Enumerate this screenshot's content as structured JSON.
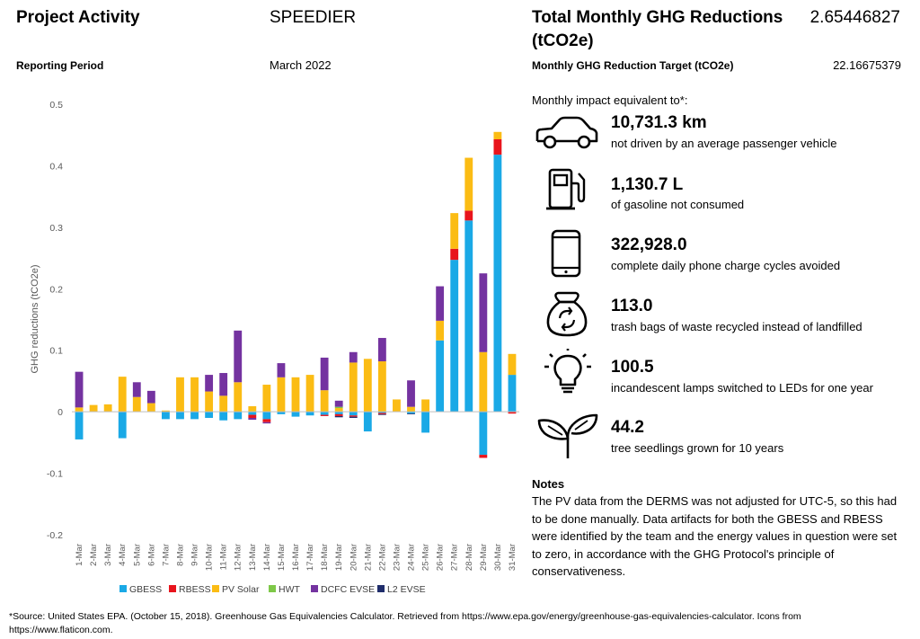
{
  "header": {
    "project_activity_label": "Project Activity",
    "project_name": "SPEEDIER",
    "reporting_period_label": "Reporting Period",
    "reporting_period_value": "March 2022",
    "total_label": "Total Monthly GHG Reductions (tCO2e)",
    "total_value": "2.65446827",
    "target_label": "Monthly GHG Reduction Target (tCO2e)",
    "target_value": "22.16675379"
  },
  "impacts": {
    "intro": "Monthly impact equivalent to*:",
    "items": [
      {
        "icon": "car-icon",
        "value": "10,731.3 km",
        "desc": "not driven by an average passenger vehicle"
      },
      {
        "icon": "fuel-pump-icon",
        "value": "1,130.7 L",
        "desc": "of gasoline not consumed"
      },
      {
        "icon": "phone-icon",
        "value": "322,928.0",
        "desc": "complete daily phone charge cycles avoided"
      },
      {
        "icon": "recycle-bag-icon",
        "value": "113.0",
        "desc": "trash bags of waste recycled instead of landfilled"
      },
      {
        "icon": "lightbulb-icon",
        "value": "100.5",
        "desc": "incandescent lamps switched to LEDs for one year"
      },
      {
        "icon": "seedling-icon",
        "value": "44.2",
        "desc": "tree seedlings grown for 10 years"
      }
    ]
  },
  "notes": {
    "heading": "Notes",
    "text": "The PV data from the DERMS was not adjusted for UTC-5, so this had to be done manually. Data artifacts for both the GBESS and RBESS were identified by the team and the energy values in question were set to zero, in accordance with the GHG Protocol's principle of conservativeness."
  },
  "source": "*Source: United States EPA. (October 15, 2018). Greenhouse Gas Equivalencies Calculator. Retrieved from https://www.epa.gov/energy/greenhouse-gas-equivalencies-calculator. Icons from https://www.flaticon.com.",
  "chart_data": {
    "type": "bar",
    "stacked": true,
    "ylabel": "GHG reductions (tCO2e)",
    "ylim": [
      -0.2,
      0.5
    ],
    "yticks": [
      -0.2,
      -0.1,
      0,
      0.1,
      0.2,
      0.3,
      0.4,
      0.5
    ],
    "ytick_labels": [
      "-0.2",
      "-0.1",
      "0",
      "0.1",
      "0.2",
      "0.3",
      "0.4",
      "0.5"
    ],
    "grid": false,
    "legend_position": "bottom",
    "categories": [
      "1-Mar",
      "2-Mar",
      "3-Mar",
      "4-Mar",
      "5-Mar",
      "6-Mar",
      "7-Mar",
      "8-Mar",
      "9-Mar",
      "10-Mar",
      "11-Mar",
      "12-Mar",
      "13-Mar",
      "14-Mar",
      "15-Mar",
      "16-Mar",
      "17-Mar",
      "18-Mar",
      "19-Mar",
      "20-Mar",
      "21-Mar",
      "22-Mar",
      "23-Mar",
      "24-Mar",
      "25-Mar",
      "26-Mar",
      "27-Mar",
      "28-Mar",
      "29-Mar",
      "30-Mar",
      "31-Mar"
    ],
    "series": [
      {
        "name": "GBESS",
        "color": "#1aa9e6",
        "values": [
          -0.045,
          0,
          0,
          -0.043,
          0,
          0,
          -0.012,
          -0.012,
          -0.012,
          -0.01,
          -0.014,
          -0.012,
          -0.005,
          -0.012,
          -0.004,
          -0.008,
          -0.006,
          -0.005,
          -0.004,
          -0.006,
          -0.032,
          -0.002,
          0,
          -0.003,
          -0.034,
          0.116,
          0.247,
          0.311,
          -0.07,
          0.418,
          0.06
        ]
      },
      {
        "name": "RBESS",
        "color": "#e8141c",
        "values": [
          0,
          0,
          0,
          0,
          0,
          0,
          0,
          0,
          0,
          0,
          0,
          0,
          -0.005,
          -0.005,
          0,
          0,
          0,
          -0.002,
          -0.003,
          -0.002,
          0,
          -0.002,
          0,
          0,
          0,
          0,
          0.018,
          0.016,
          -0.005,
          0.025,
          -0.003
        ]
      },
      {
        "name": "PV Solar",
        "color": "#fbbc14",
        "values": [
          0.007,
          0.011,
          0.012,
          0.057,
          0.024,
          0.014,
          0.002,
          0.056,
          0.056,
          0.033,
          0.026,
          0.048,
          0.009,
          0.044,
          0.056,
          0.056,
          0.06,
          0.035,
          0.006,
          0.08,
          0.086,
          0.082,
          0.02,
          0.008,
          0.02,
          0.032,
          0.058,
          0.086,
          0.097,
          0.012,
          0.034
        ]
      },
      {
        "name": "HWT",
        "color": "#7ec848",
        "values": [
          0,
          0,
          0,
          0,
          0,
          0,
          0,
          0,
          0,
          0,
          0,
          0,
          0,
          0,
          0,
          0,
          0,
          0,
          0.002,
          0,
          0,
          0,
          0,
          0,
          0,
          0,
          0,
          0,
          0,
          0,
          0
        ]
      },
      {
        "name": "DCFC EVSE",
        "color": "#7433a0",
        "values": [
          0.058,
          0,
          0,
          0,
          0.024,
          0.02,
          0,
          0,
          0,
          0.027,
          0.037,
          0.084,
          -0.003,
          -0.002,
          0.023,
          0,
          0,
          0.053,
          0.01,
          0.017,
          0,
          0.038,
          0,
          0.043,
          0,
          0.056,
          0,
          0,
          0.128,
          0,
          0
        ]
      },
      {
        "name": "L2 EVSE",
        "color": "#1f2d6b",
        "values": [
          0,
          0,
          0,
          0,
          0,
          0,
          0,
          0,
          0,
          0,
          0,
          0,
          0,
          0,
          0,
          0,
          0,
          0,
          -0.002,
          -0.002,
          0,
          -0.001,
          0,
          -0.001,
          0,
          0,
          0,
          0,
          0,
          0,
          0
        ]
      }
    ]
  }
}
